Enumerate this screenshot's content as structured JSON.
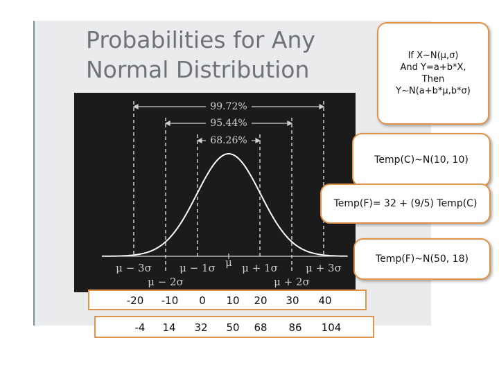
{
  "slide": {
    "title": "Probabilities for Any Normal Distribution"
  },
  "diagram": {
    "percent_labels": [
      "99.72%",
      "95.44%",
      "68.26%"
    ],
    "axis_labels": {
      "mu_minus_3sigma": "μ − 3σ",
      "mu_minus_2sigma": "μ − 2σ",
      "mu_minus_1sigma": "μ − 1σ",
      "mu": "μ",
      "mu_plus_1sigma": "μ + 1σ",
      "mu_plus_2sigma": "μ + 2σ",
      "mu_plus_3sigma": "μ + 3σ"
    }
  },
  "callouts": {
    "linear_transform": "If X~N(μ,σ)\nAnd Y=a+b*X,\nThen\nY~N(a+b*μ,b*σ)",
    "celsius_dist": "Temp(C)~N(10, 10)",
    "conversion": "Temp(F)= 32 + (9/5) Temp(C)",
    "fahrenheit_dist": "Temp(F)~N(50, 18)"
  },
  "tables": {
    "celsius_row": [
      "-20",
      "-10",
      "0",
      "10",
      "20",
      "30",
      "40"
    ],
    "fahrenheit_row": [
      "-4",
      "14",
      "32",
      "50",
      "68",
      "86",
      "104"
    ]
  },
  "colors": {
    "callout_border": "#e0934a",
    "panel_bg": "#1b1b1b",
    "chart_line": "#d8d8d8"
  }
}
